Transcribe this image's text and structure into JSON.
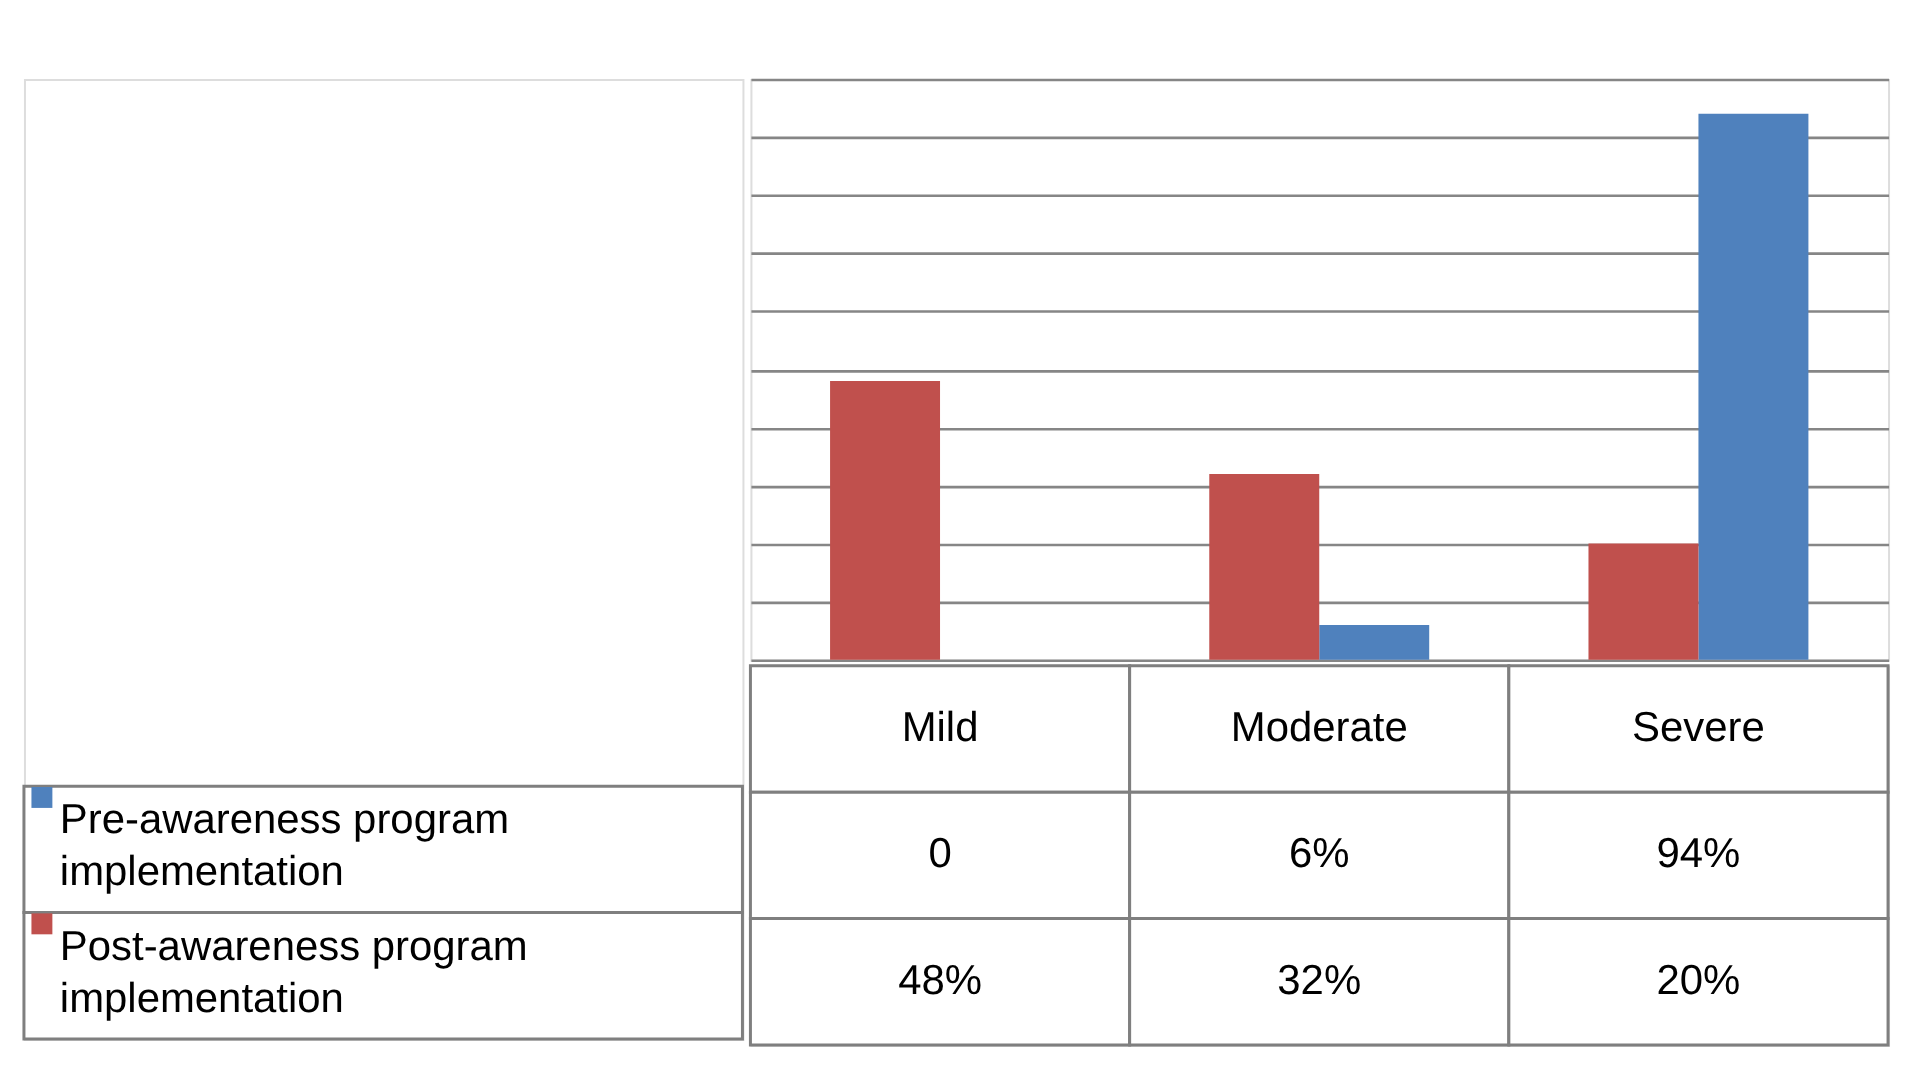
{
  "chart_data": {
    "type": "bar",
    "categories": [
      "Mild",
      "Moderate",
      "Severe"
    ],
    "series": [
      {
        "name": "Pre-awareness program implementation",
        "color": "#4f81bd",
        "values": [
          0,
          6,
          94
        ],
        "value_labels": [
          "0",
          "6%",
          "94%"
        ]
      },
      {
        "name": "Post-awareness program implementation",
        "color": "#c0504d",
        "values": [
          48,
          32,
          20
        ],
        "value_labels": [
          "48%",
          "32%",
          "20%"
        ]
      }
    ],
    "ylim": [
      0,
      100
    ],
    "yticks": [
      {
        "value": 0,
        "label": null
      },
      {
        "value": 10,
        "label": null
      },
      {
        "value": 20,
        "label": null
      },
      {
        "value": 30,
        "label": null
      },
      {
        "value": 40,
        "label": null
      },
      {
        "value": 50,
        "label": null
      },
      {
        "value": 60,
        "label": null
      },
      {
        "value": 70,
        "label": null
      },
      {
        "value": 80,
        "label": null
      },
      {
        "value": 90,
        "label": null
      },
      {
        "value": 100,
        "label": null
      }
    ],
    "grid": "y",
    "legend": "bottom left"
  }
}
